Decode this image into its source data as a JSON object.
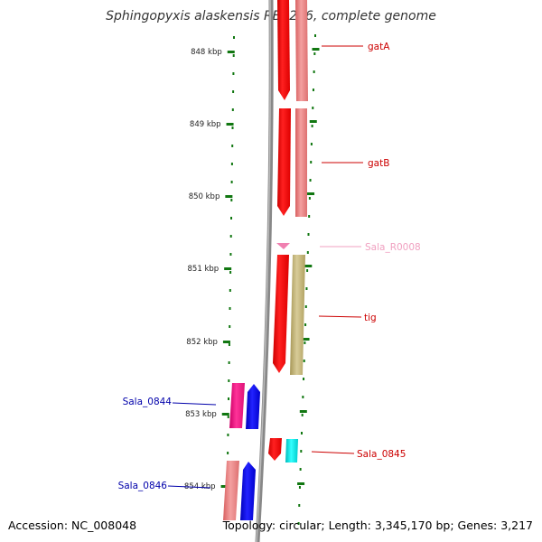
{
  "title": "Sphingopyxis alaskensis RB2256, complete genome",
  "footer": {
    "accession": "Accession: NC_008048",
    "info": "Topology: circular; Length: 3,345,170 bp; Genes: 3,217"
  },
  "ticks": [
    "848 kbp",
    "849 kbp",
    "850 kbp",
    "851 kbp",
    "852 kbp",
    "853 kbp",
    "854 kbp"
  ],
  "genes": [
    {
      "name": "gatA",
      "color": "#cc0000"
    },
    {
      "name": "gatB",
      "color": "#cc0000"
    },
    {
      "name": "Sala_R0008",
      "color": "#f0a0c0"
    },
    {
      "name": "tig",
      "color": "#cc0000"
    },
    {
      "name": "Sala_0844",
      "color": "#0000aa"
    },
    {
      "name": "Sala_0845",
      "color": "#cc0000"
    },
    {
      "name": "Sala_0846",
      "color": "#0000aa"
    }
  ],
  "colors": {
    "backbone": "#888888",
    "tick_green": "#117711",
    "gene_red": "#ff0000",
    "gene_pink": "#f08080",
    "gene_olive": "#c8b878",
    "gene_magenta": "#ee1188",
    "gene_blue": "#0000ff",
    "gene_cyan": "#00dddd"
  }
}
